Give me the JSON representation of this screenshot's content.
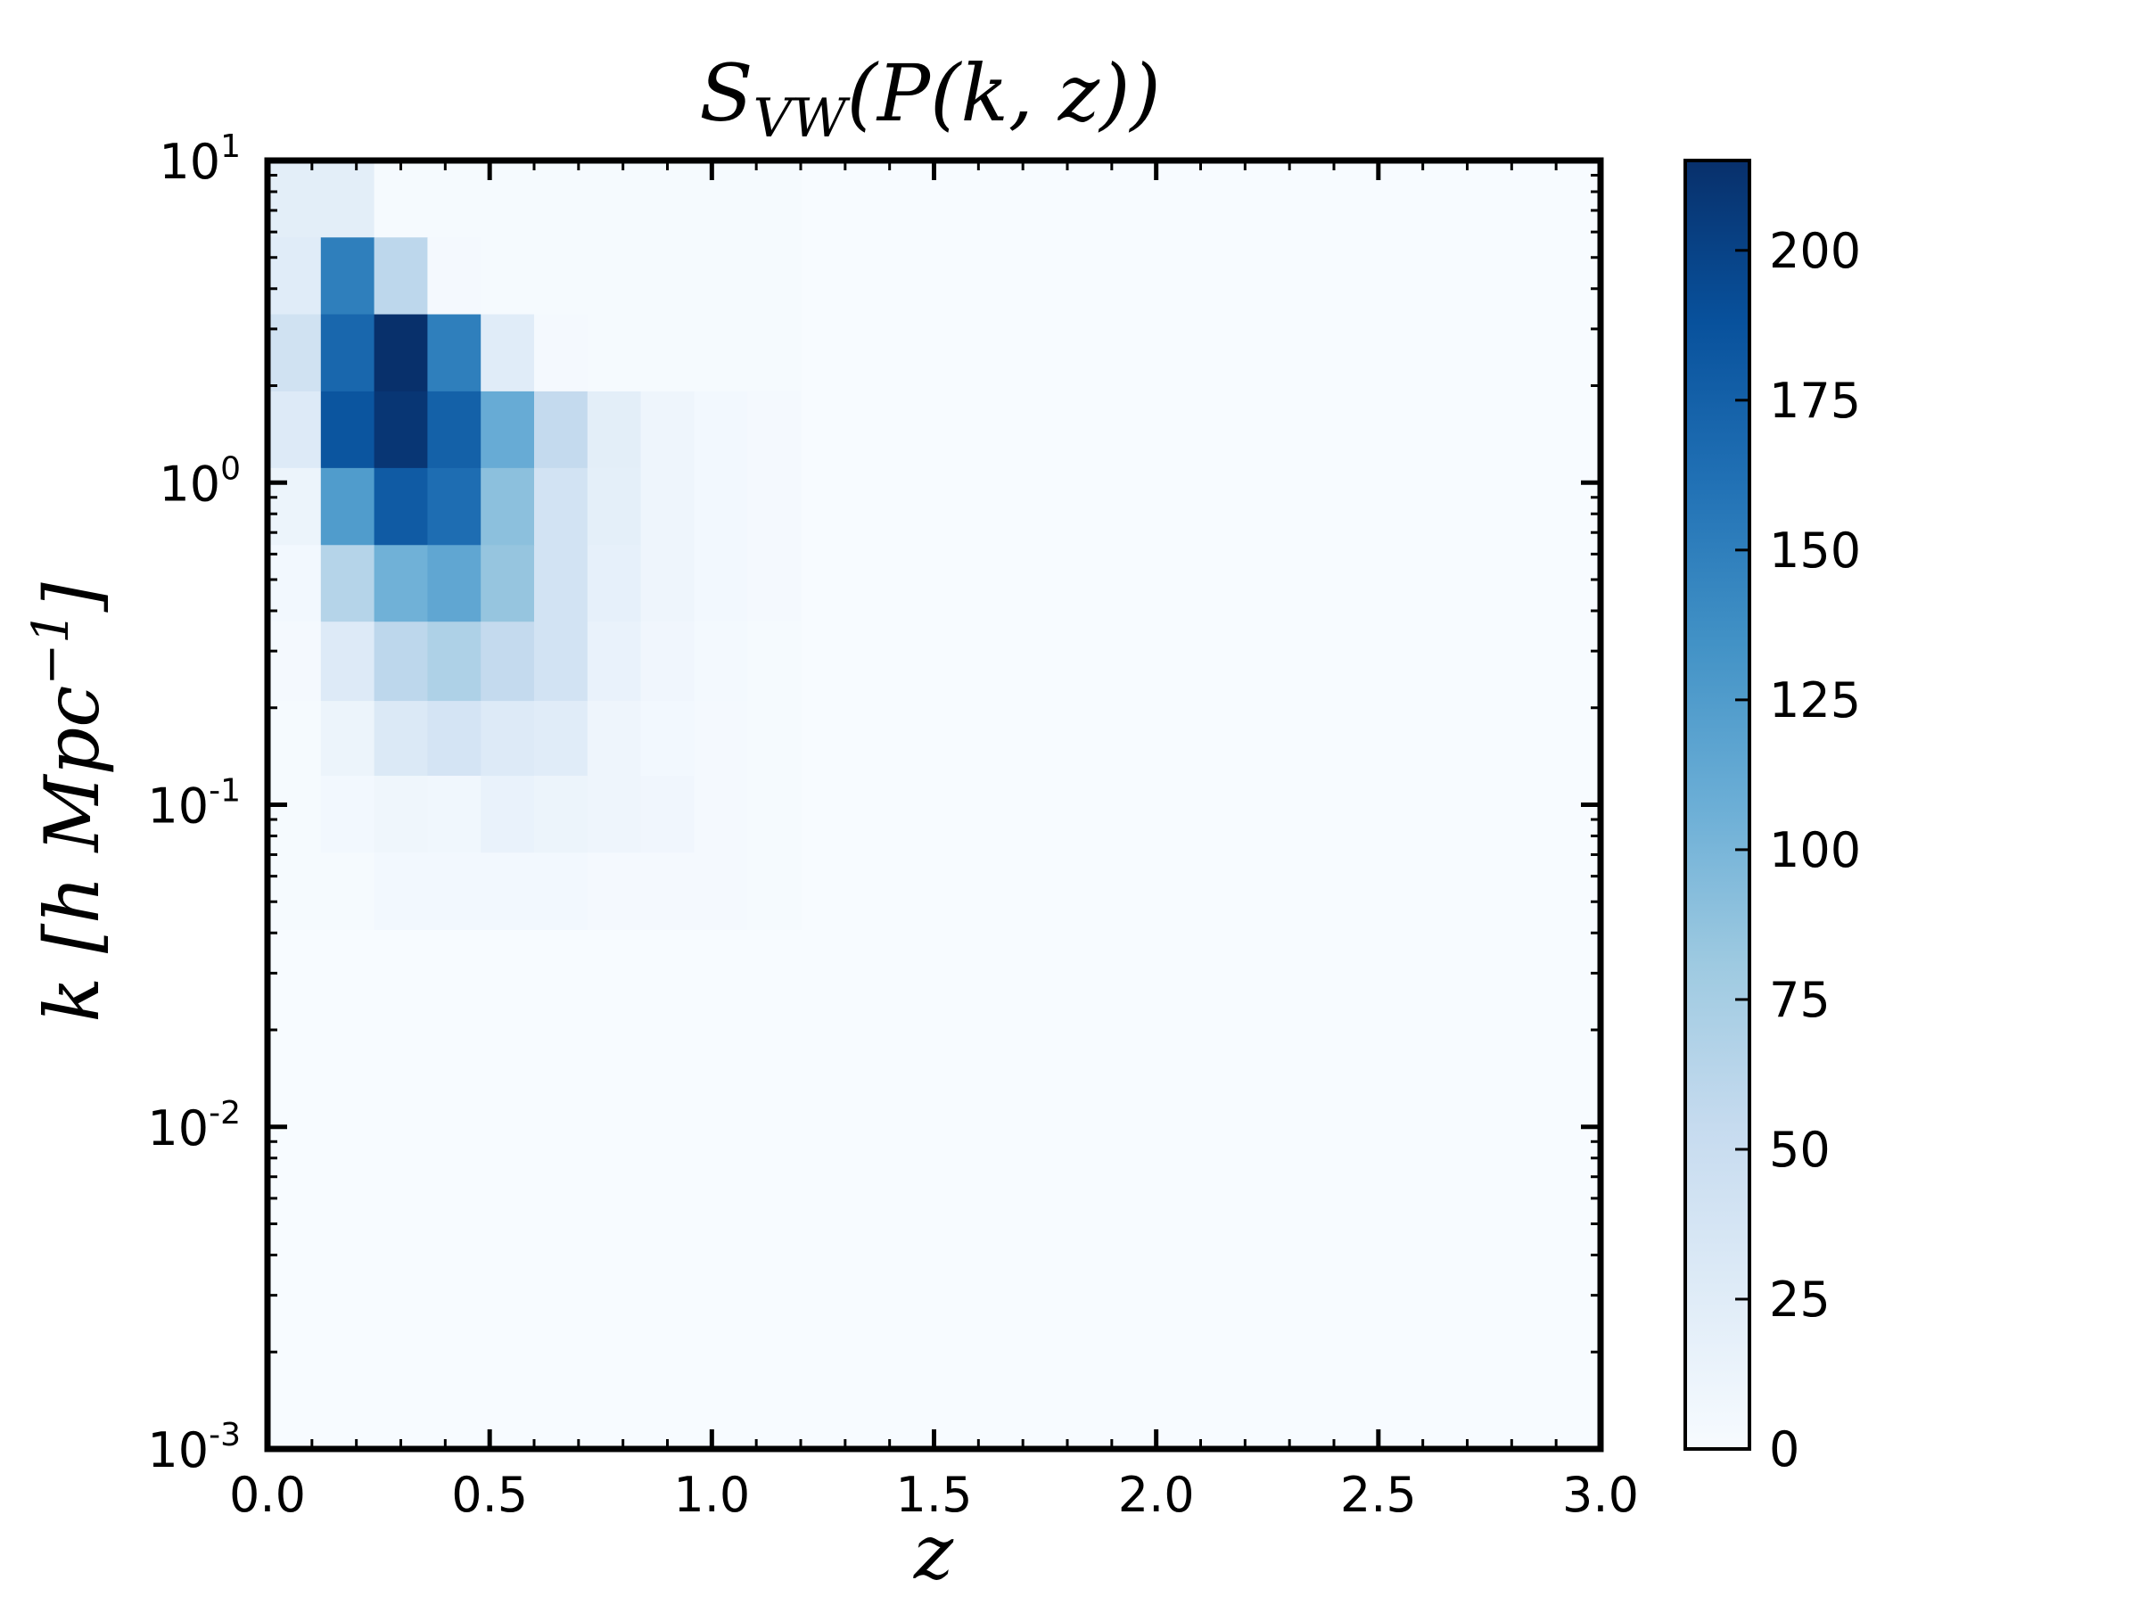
{
  "chart_data": {
    "type": "heatmap",
    "title": {
      "base": "S",
      "sub": "VW",
      "rest": "(P(k, z))"
    },
    "xlabel": "z",
    "ylabel": "k [h Mpc",
    "ylabel_exp": "−1",
    "ylabel_close": "]",
    "xlim": [
      0,
      3.0
    ],
    "ylim": [
      0.001,
      10
    ],
    "yscale": "log",
    "grid": false,
    "x_ticks": [
      "0.0",
      "0.5",
      "1.0",
      "1.5",
      "2.0",
      "2.5",
      "3.0"
    ],
    "y_ticks": [
      {
        "base": "10",
        "exp": "1"
      },
      {
        "base": "10",
        "exp": "0"
      },
      {
        "base": "10",
        "exp": "-1"
      },
      {
        "base": "10",
        "exp": "-2"
      },
      {
        "base": "10",
        "exp": "-3"
      }
    ],
    "colorbar": {
      "vmin": 0,
      "vmax": 215,
      "ticks": [
        "0",
        "25",
        "50",
        "75",
        "100",
        "125",
        "150",
        "175",
        "200"
      ],
      "colormap": "Blues",
      "colors": [
        "#f7fbff",
        "#deebf7",
        "#c6dbef",
        "#9ecae1",
        "#6baed6",
        "#4292c6",
        "#2171b5",
        "#08519c",
        "#08306b"
      ]
    },
    "x_bins": [
      0.0,
      0.12,
      0.24,
      0.36,
      0.48,
      0.6,
      0.72,
      0.84,
      0.96,
      1.08,
      1.2
    ],
    "y_bins": [
      10.0,
      5.77,
      3.33,
      1.92,
      1.11,
      0.64,
      0.37,
      0.21,
      0.123,
      0.071,
      0.041
    ],
    "values": [
      [
        22,
        22,
        2,
        2,
        2,
        2,
        2,
        2,
        2,
        2
      ],
      [
        25,
        150,
        60,
        3,
        2,
        2,
        2,
        2,
        2,
        2
      ],
      [
        42,
        170,
        215,
        150,
        25,
        3,
        2,
        2,
        2,
        2
      ],
      [
        28,
        185,
        210,
        175,
        110,
        55,
        22,
        10,
        5,
        3
      ],
      [
        12,
        125,
        180,
        165,
        90,
        40,
        20,
        10,
        5,
        3
      ],
      [
        5,
        65,
        105,
        115,
        85,
        40,
        18,
        10,
        5,
        3
      ],
      [
        3,
        28,
        60,
        70,
        55,
        40,
        15,
        8,
        4,
        2
      ],
      [
        2,
        12,
        30,
        38,
        28,
        25,
        10,
        5,
        3,
        2
      ],
      [
        2,
        5,
        9,
        7,
        15,
        12,
        10,
        8,
        3,
        2
      ],
      [
        2,
        2,
        5,
        5,
        5,
        5,
        3,
        3,
        3,
        2
      ]
    ],
    "background_value": 2
  }
}
